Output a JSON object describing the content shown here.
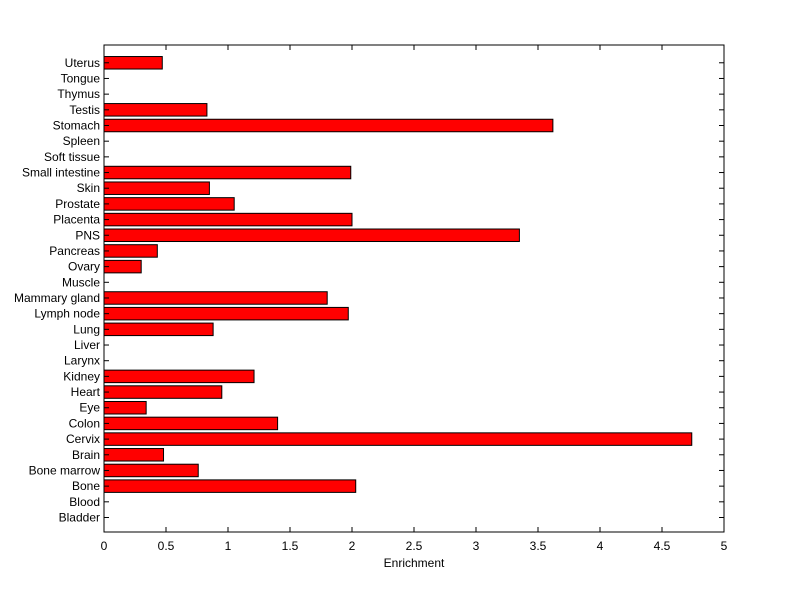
{
  "chart_data": {
    "type": "bar",
    "orientation": "horizontal",
    "title": "",
    "xlabel": "Enrichment",
    "ylabel": "",
    "xlim": [
      0,
      5
    ],
    "xticks": [
      "0",
      "0.5",
      "1",
      "1.5",
      "2",
      "2.5",
      "3",
      "3.5",
      "4",
      "4.5",
      "5"
    ],
    "grid": false,
    "bar_color": "#ff0000",
    "categories": [
      "Bladder",
      "Blood",
      "Bone",
      "Bone marrow",
      "Brain",
      "Cervix",
      "Colon",
      "Eye",
      "Heart",
      "Kidney",
      "Larynx",
      "Liver",
      "Lung",
      "Lymph node",
      "Mammary gland",
      "Muscle",
      "Ovary",
      "Pancreas",
      "PNS",
      "Placenta",
      "Prostate",
      "Skin",
      "Small intestine",
      "Soft tissue",
      "Spleen",
      "Stomach",
      "Testis",
      "Thymus",
      "Tongue",
      "Uterus"
    ],
    "values": [
      0,
      0,
      2.03,
      0.76,
      0.48,
      4.74,
      1.4,
      0.34,
      0.95,
      1.21,
      0,
      0,
      0.88,
      1.97,
      1.8,
      0,
      0.3,
      0.43,
      3.35,
      2.0,
      1.05,
      0.85,
      1.99,
      0,
      0,
      3.62,
      0.83,
      0,
      0,
      0.47
    ]
  }
}
